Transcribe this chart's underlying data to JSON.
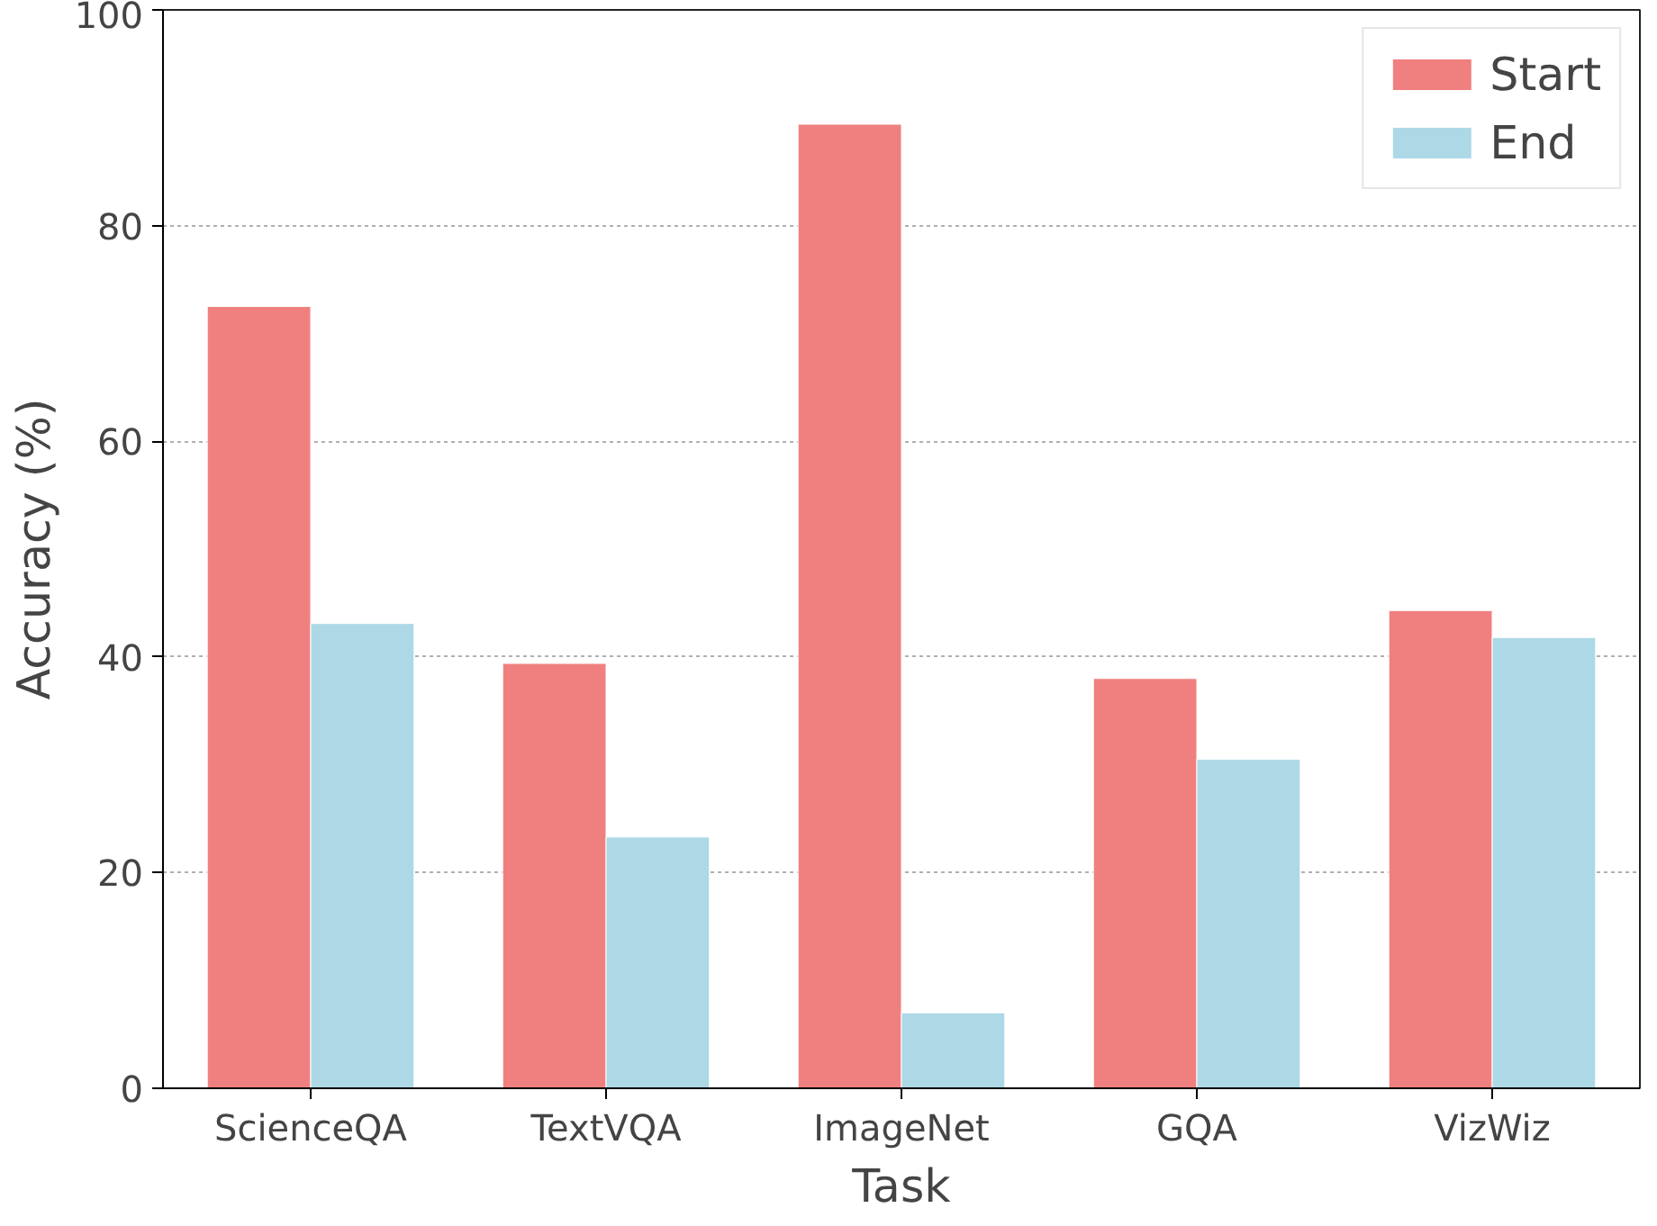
{
  "chart_data": {
    "type": "bar",
    "xlabel": "Task",
    "ylabel": "Accuracy (%)",
    "categories": [
      "ScienceQA",
      "TextVQA",
      "ImageNet",
      "GQA",
      "VizWiz"
    ],
    "series": [
      {
        "name": "Start",
        "color": "#f08080",
        "values": [
          72.5,
          39.4,
          89.4,
          38.0,
          44.3
        ]
      },
      {
        "name": "End",
        "color": "#add8e6",
        "values": [
          43.1,
          23.3,
          7.0,
          30.5,
          41.8
        ]
      }
    ],
    "ylim": [
      0,
      100
    ],
    "yticks": [
      0,
      20,
      40,
      60,
      80,
      100
    ],
    "grid": "y",
    "legend": "top right"
  }
}
